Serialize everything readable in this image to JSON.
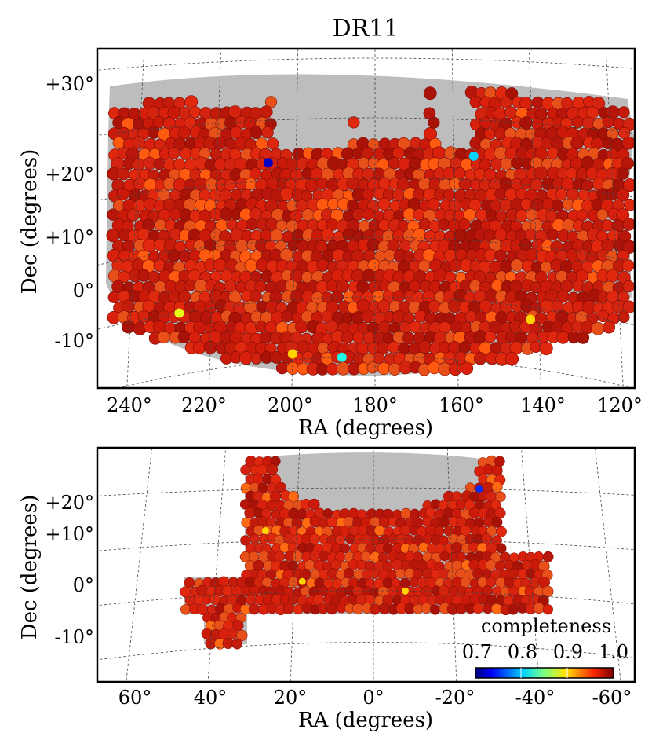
{
  "figure_title": "DR11",
  "chart_data": [
    {
      "type": "scatter",
      "panel": "north",
      "title": "DR11",
      "xlabel": "RA (degrees)",
      "ylabel": "Dec (degrees)",
      "x_ticks": [
        "240°",
        "220°",
        "200°",
        "180°",
        "160°",
        "140°",
        "120°"
      ],
      "y_ticks": [
        "+30°",
        "+20°",
        "+10°",
        "0°",
        "-10°"
      ],
      "xlim": [
        245,
        120
      ],
      "ylim": [
        -20,
        35
      ],
      "grid": true,
      "footprint_color": "#bdbdbd",
      "marker": "filled circle (tile completeness)",
      "dominant_completeness": 1.0,
      "low_completeness_spots": [
        {
          "ra": 228,
          "dec": 0,
          "completeness": 0.88
        },
        {
          "ra": 200,
          "dec": -9,
          "completeness": 0.9
        },
        {
          "ra": 188,
          "dec": -10,
          "completeness": 0.82
        },
        {
          "ra": 142,
          "dec": -2,
          "completeness": 0.9
        },
        {
          "ra": 207,
          "dec": 23,
          "completeness": 0.72
        },
        {
          "ra": 155,
          "dec": 24,
          "completeness": 0.8
        }
      ]
    },
    {
      "type": "scatter",
      "panel": "south",
      "xlabel": "RA (degrees)",
      "ylabel": "Dec (degrees)",
      "x_ticks": [
        "60°",
        "40°",
        "20°",
        "0°",
        "-20°",
        "-40°",
        "-60°"
      ],
      "y_ticks": [
        "+20°",
        "+10°",
        "0°",
        "-10°"
      ],
      "xlim": [
        68,
        -65
      ],
      "ylim": [
        -18,
        26
      ],
      "grid": true,
      "footprint_color": "#bdbdbd",
      "marker": "filled circle (tile completeness)",
      "dominant_completeness": 1.0,
      "colorbar": {
        "label": "completeness",
        "ticks": [
          "0.7",
          "0.8",
          "0.9",
          "1.0"
        ],
        "range": [
          0.7,
          1.0
        ],
        "colormap": "jet",
        "placement": "bottom-right"
      },
      "low_completeness_spots": [
        {
          "ra": 28,
          "dec": 12,
          "completeness": 0.9
        },
        {
          "ra": 18,
          "dec": 2,
          "completeness": 0.9
        },
        {
          "ra": -8,
          "dec": 0,
          "completeness": 0.9
        },
        {
          "ra": -28,
          "dec": 20,
          "completeness": 0.75
        }
      ]
    }
  ]
}
